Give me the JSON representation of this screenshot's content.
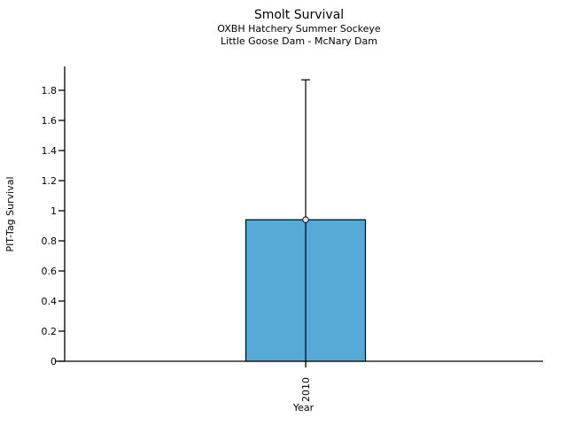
{
  "chart_data": {
    "type": "bar",
    "title": "Smolt Survival",
    "subtitle1": "OXBH Hatchery Summer Sockeye",
    "subtitle2": "Little Goose Dam - McNary Dam",
    "xlabel": "Year",
    "ylabel": "PIT-Tag Survival",
    "categories": [
      "2010"
    ],
    "values": [
      0.94
    ],
    "point_markers": [
      0.94
    ],
    "error_bars": [
      {
        "low": 0,
        "high": 1.87
      }
    ],
    "yticks": [
      0,
      0.2,
      0.4,
      0.6,
      0.8,
      1,
      1.2,
      1.4,
      1.6,
      1.8
    ],
    "ylim": [
      0,
      1.96
    ],
    "grid": false,
    "legend": null,
    "bar_color": "#56AAD6",
    "bar_edge_color": "#000000",
    "axis_color": "#000000",
    "marker_fill": "#f2f2f2",
    "marker_edge": "#1a1a1a"
  }
}
